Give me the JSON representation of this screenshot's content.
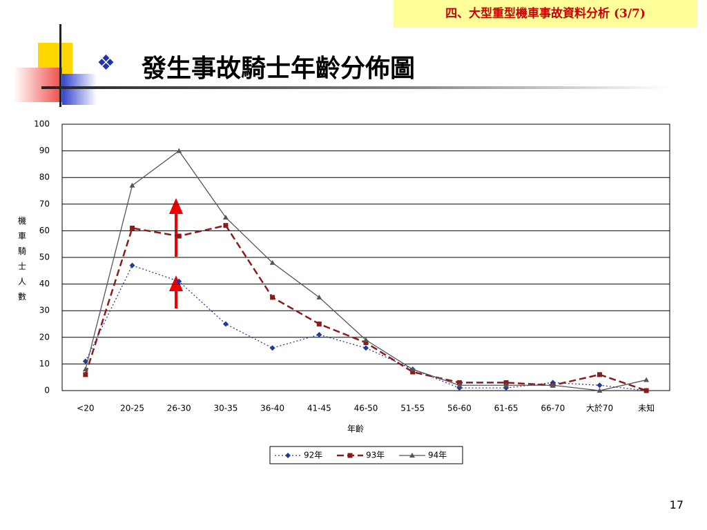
{
  "header": {
    "section": "四、大型重型機車事故資料分析 (3/7)",
    "title": "發生事故騎士年齡分佈圖"
  },
  "page_number": "17",
  "chart_data": {
    "type": "line",
    "x_label": "年齡",
    "y_label": "機車騎士人數",
    "categories": [
      "<20",
      "20-25",
      "26-30",
      "30-35",
      "36-40",
      "41-45",
      "46-50",
      "51-55",
      "56-60",
      "61-65",
      "66-70",
      "大於70",
      "未知"
    ],
    "series": [
      {
        "name": "92年",
        "color": "#1f3a9a",
        "dash": "dotted",
        "marker": "diamond",
        "values": [
          11,
          47,
          41,
          25,
          16,
          21,
          16,
          8,
          1,
          1,
          3,
          2,
          0
        ]
      },
      {
        "name": "93年",
        "color": "#8b1a1a",
        "dash": "dashed",
        "marker": "square",
        "values": [
          6,
          61,
          58,
          62,
          35,
          25,
          18,
          7,
          3,
          3,
          2,
          6,
          0
        ]
      },
      {
        "name": "94年",
        "color": "#555555",
        "dash": "solid",
        "marker": "triangle",
        "values": [
          8,
          77,
          90,
          65,
          48,
          35,
          19,
          8,
          2,
          2,
          2,
          0,
          4
        ]
      }
    ],
    "ylim": [
      0,
      100
    ],
    "yticks": [
      0,
      10,
      20,
      30,
      40,
      50,
      60,
      70,
      80,
      90,
      100
    ],
    "grid": true,
    "legend": "bottom"
  }
}
